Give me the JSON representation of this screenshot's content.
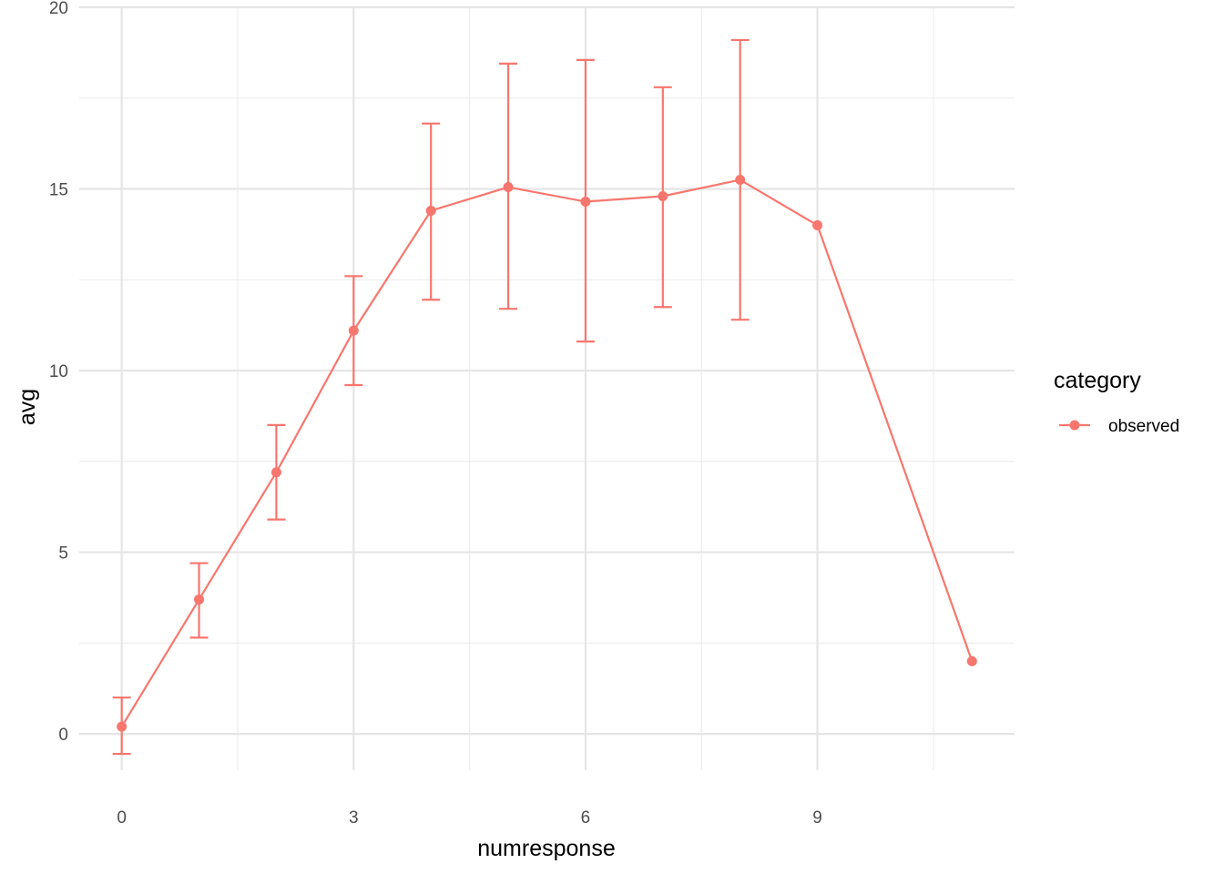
{
  "chart_data": {
    "type": "line",
    "xlabel": "numresponse",
    "ylabel": "avg",
    "xlim": [
      -0.55,
      11.55
    ],
    "ylim": [
      -1.0,
      20.0
    ],
    "x_ticks": [
      0,
      3,
      6,
      9
    ],
    "x_minor_ticks": [
      1.5,
      4.5,
      7.5,
      10.5
    ],
    "y_ticks": [
      0,
      5,
      10,
      15,
      20
    ],
    "y_minor_ticks": [
      2.5,
      7.5,
      12.5,
      17.5
    ],
    "x_tick_labels": [
      "0",
      "3",
      "6",
      "9"
    ],
    "y_tick_labels": [
      "0",
      "5",
      "10",
      "15",
      "20"
    ],
    "grid": true,
    "legend": {
      "title": "category",
      "position": "right",
      "entries": [
        "observed"
      ]
    },
    "series": [
      {
        "name": "observed",
        "color": "#F8766D",
        "x": [
          0,
          1,
          2,
          3,
          4,
          5,
          6,
          7,
          8,
          9,
          11
        ],
        "y": [
          0.2,
          3.7,
          7.2,
          11.1,
          14.4,
          15.05,
          14.65,
          14.8,
          15.25,
          14.0,
          2.0
        ],
        "y_low": [
          -0.55,
          2.65,
          5.9,
          9.6,
          11.95,
          11.7,
          10.8,
          11.75,
          11.4,
          null,
          null
        ],
        "y_high": [
          1.0,
          4.7,
          8.5,
          12.6,
          16.8,
          18.45,
          18.55,
          17.8,
          19.1,
          null,
          null
        ]
      }
    ]
  }
}
